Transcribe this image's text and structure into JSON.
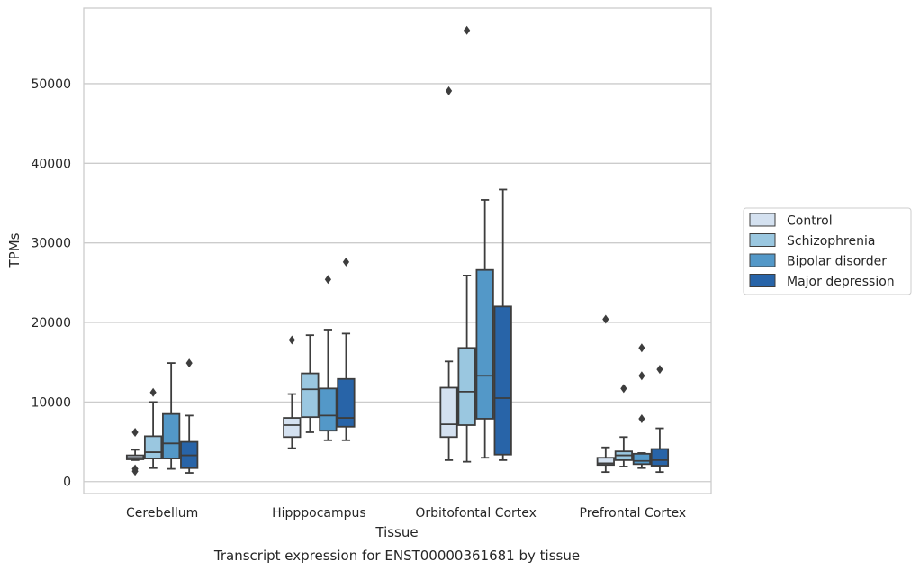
{
  "chart_data": {
    "type": "boxplot",
    "title": "",
    "caption": "Transcript expression for ENST00000361681 by tissue",
    "xlabel": "Tissue",
    "ylabel": "TPMs",
    "ylim": [
      -1500,
      59500
    ],
    "yticks": [
      0,
      10000,
      20000,
      30000,
      40000,
      50000
    ],
    "grid": "horizontal",
    "legend_position": "right",
    "categories": [
      "Cerebellum",
      "Hipppocampus",
      "Orbitofontal Cortex",
      "Prefrontal Cortex"
    ],
    "series": [
      {
        "name": "Control",
        "color": "#d4e1f0",
        "boxes": [
          {
            "whislo": 2700,
            "q1": 2800,
            "med": 3000,
            "q3": 3300,
            "whishi": 4000,
            "fliers": [
              6200,
              1600,
              1300
            ]
          },
          {
            "whislo": 4200,
            "q1": 5600,
            "med": 7100,
            "q3": 8000,
            "whishi": 11000,
            "fliers": [
              17800
            ]
          },
          {
            "whislo": 2700,
            "q1": 5600,
            "med": 7200,
            "q3": 11800,
            "whishi": 15100,
            "fliers": [
              49100
            ]
          },
          {
            "whislo": 1200,
            "q1": 2100,
            "med": 2300,
            "q3": 3000,
            "whishi": 4300,
            "fliers": [
              20400
            ]
          }
        ]
      },
      {
        "name": "Schizophrenia",
        "color": "#9ac7e0",
        "boxes": [
          {
            "whislo": 1700,
            "q1": 2900,
            "med": 3700,
            "q3": 5700,
            "whishi": 10000,
            "fliers": [
              11200
            ]
          },
          {
            "whislo": 6200,
            "q1": 8100,
            "med": 11600,
            "q3": 13600,
            "whishi": 18400,
            "fliers": []
          },
          {
            "whislo": 2500,
            "q1": 7100,
            "med": 11300,
            "q3": 16800,
            "whishi": 25900,
            "fliers": [
              56700
            ]
          },
          {
            "whislo": 1900,
            "q1": 2700,
            "med": 3300,
            "q3": 3800,
            "whishi": 5600,
            "fliers": [
              11700
            ]
          }
        ]
      },
      {
        "name": "Bipolar disorder",
        "color": "#5398c8",
        "boxes": [
          {
            "whislo": 1600,
            "q1": 2900,
            "med": 4800,
            "q3": 8500,
            "whishi": 14900,
            "fliers": []
          },
          {
            "whislo": 5200,
            "q1": 6400,
            "med": 8300,
            "q3": 11700,
            "whishi": 19100,
            "fliers": [
              25400
            ]
          },
          {
            "whislo": 3000,
            "q1": 7900,
            "med": 13300,
            "q3": 26600,
            "whishi": 35400,
            "fliers": []
          },
          {
            "whislo": 1700,
            "q1": 2200,
            "med": 2600,
            "q3": 3500,
            "whishi": 3600,
            "fliers": [
              16800,
              13300,
              7900
            ]
          }
        ]
      },
      {
        "name": "Major depression",
        "color": "#2864a8",
        "boxes": [
          {
            "whislo": 1100,
            "q1": 1700,
            "med": 3300,
            "q3": 5000,
            "whishi": 8300,
            "fliers": [
              14900
            ]
          },
          {
            "whislo": 5200,
            "q1": 6900,
            "med": 8000,
            "q3": 12900,
            "whishi": 18600,
            "fliers": [
              27600
            ]
          },
          {
            "whislo": 2700,
            "q1": 3400,
            "med": 10500,
            "q3": 22000,
            "whishi": 36700,
            "fliers": []
          },
          {
            "whislo": 1200,
            "q1": 2000,
            "med": 2700,
            "q3": 4100,
            "whishi": 6700,
            "fliers": [
              14100
            ]
          }
        ]
      }
    ]
  }
}
